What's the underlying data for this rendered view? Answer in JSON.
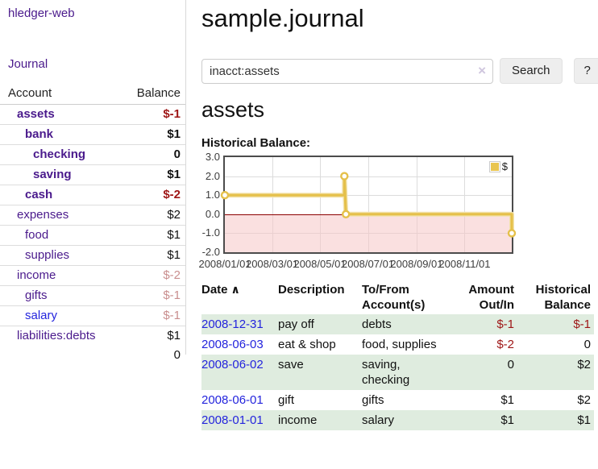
{
  "app": {
    "brand": "hledger-web",
    "nav_journal": "Journal"
  },
  "sidebar": {
    "header": {
      "account": "Account",
      "balance": "Balance"
    },
    "accounts": [
      {
        "name": "assets",
        "depth": 0,
        "bold": true,
        "link_style": "purple",
        "balance": "$-1",
        "balance_class": "neg-bold"
      },
      {
        "name": "bank",
        "depth": 1,
        "bold": true,
        "link_style": "purple",
        "balance": "$1",
        "balance_class": "pos-bold"
      },
      {
        "name": "checking",
        "depth": 2,
        "bold": true,
        "link_style": "purple",
        "balance": "0",
        "balance_class": "pos-bold"
      },
      {
        "name": "saving",
        "depth": 2,
        "bold": true,
        "link_style": "purple",
        "balance": "$1",
        "balance_class": "pos-bold"
      },
      {
        "name": "cash",
        "depth": 1,
        "bold": true,
        "link_style": "purple",
        "balance": "$-2",
        "balance_class": "neg-bold"
      },
      {
        "name": "expenses",
        "depth": 0,
        "bold": false,
        "link_style": "purple",
        "balance": "$2",
        "balance_class": "pos"
      },
      {
        "name": "food",
        "depth": 1,
        "bold": false,
        "link_style": "purple",
        "balance": "$1",
        "balance_class": "pos"
      },
      {
        "name": "supplies",
        "depth": 1,
        "bold": false,
        "link_style": "purple",
        "balance": "$1",
        "balance_class": "pos"
      },
      {
        "name": "income",
        "depth": 0,
        "bold": false,
        "link_style": "purple",
        "balance": "$-2",
        "balance_class": "neg-light"
      },
      {
        "name": "gifts",
        "depth": 1,
        "bold": false,
        "link_style": "purple",
        "balance": "$-1",
        "balance_class": "neg-light"
      },
      {
        "name": "salary",
        "depth": 1,
        "bold": false,
        "link_style": "blue",
        "balance": "$-1",
        "balance_class": "neg-light"
      },
      {
        "name": "liabilities:debts",
        "depth": 0,
        "bold": false,
        "link_style": "purple",
        "balance": "$1",
        "balance_class": "pos"
      }
    ],
    "total": "0"
  },
  "header": {
    "title": "sample.journal"
  },
  "search": {
    "value": "inacct:assets",
    "clear_icon": "×",
    "button_label": "Search",
    "help_label": "?"
  },
  "account_page": {
    "title": "assets",
    "section_label": "Historical Balance:"
  },
  "chart_data": {
    "type": "line",
    "step": true,
    "title": "Historical Balance:",
    "ylim": [
      -2,
      3
    ],
    "yticks": [
      3.0,
      2.0,
      1.0,
      0.0,
      -1.0,
      -2.0
    ],
    "ytick_labels": [
      "3.0",
      "2.0",
      "1.0",
      "0.0",
      "-1.0",
      "-2.0"
    ],
    "xticks": [
      "2008/01/01",
      "2008/03/01",
      "2008/05/01",
      "2008/07/01",
      "2008/09/01",
      "2008/11/01"
    ],
    "x_range": [
      "2008-01-01",
      "2008-12-31"
    ],
    "series": [
      {
        "name": "$",
        "color": "#e5c04a",
        "points": [
          {
            "x": "2008-01-01",
            "y": 1
          },
          {
            "x": "2008-06-01",
            "y": 1
          },
          {
            "x": "2008-06-01",
            "y": 2
          },
          {
            "x": "2008-06-03",
            "y": 0
          },
          {
            "x": "2008-12-31",
            "y": 0
          },
          {
            "x": "2008-12-31",
            "y": -1
          }
        ],
        "markers": [
          {
            "x": "2008-01-01",
            "y": 1
          },
          {
            "x": "2008-06-01",
            "y": 2
          },
          {
            "x": "2008-06-03",
            "y": 0
          },
          {
            "x": "2008-12-31",
            "y": -1
          }
        ]
      }
    ],
    "legend": {
      "position": "top-right",
      "label": "$",
      "swatch_color": "#e9c54f"
    },
    "negative_region_color": "#f8dede",
    "zero_line_color": "#8b0000",
    "grid": true
  },
  "register": {
    "columns": [
      {
        "label": "Date",
        "align": "left",
        "sort_icon": "∧",
        "sortable": true
      },
      {
        "label": "Description",
        "align": "left"
      },
      {
        "label": "To/From\nAccount(s)",
        "align": "left"
      },
      {
        "label": "Amount\nOut/In",
        "align": "right"
      },
      {
        "label": "Historical\nBalance",
        "align": "right"
      }
    ],
    "rows": [
      {
        "date": "2008-12-31",
        "description": "pay off",
        "accounts": "debts",
        "amount": "$-1",
        "amount_class": "neg",
        "balance": "$-1",
        "balance_class": "neg",
        "shaded": true
      },
      {
        "date": "2008-06-03",
        "description": "eat & shop",
        "accounts": "food, supplies",
        "amount": "$-2",
        "amount_class": "neg",
        "balance": "0",
        "balance_class": "pos",
        "shaded": false
      },
      {
        "date": "2008-06-02",
        "description": "save",
        "accounts": "saving,\nchecking",
        "amount": "0",
        "amount_class": "pos",
        "balance": "$2",
        "balance_class": "pos",
        "shaded": true
      },
      {
        "date": "2008-06-01",
        "description": "gift",
        "accounts": "gifts",
        "amount": "$1",
        "amount_class": "pos",
        "balance": "$2",
        "balance_class": "pos",
        "shaded": false
      },
      {
        "date": "2008-01-01",
        "description": "income",
        "accounts": "salary",
        "amount": "$1",
        "amount_class": "pos",
        "balance": "$1",
        "balance_class": "pos",
        "shaded": true
      }
    ]
  },
  "colors": {
    "link_purple": "#4a1a8c",
    "link_blue": "#2424dd",
    "negative_strong": "#9e1616",
    "negative_faded": "#c98e8e",
    "row_shade_green": "#dfecdf",
    "chart_line_gold": "#e5c04a"
  }
}
